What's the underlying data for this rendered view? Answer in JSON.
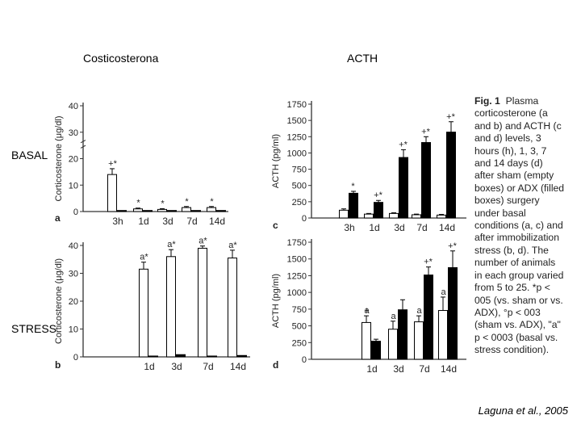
{
  "columns": {
    "left": "Costicosterona",
    "right": "ACTH"
  },
  "rows": {
    "top": "BASAL",
    "bottom": "STRESS"
  },
  "credit": "Laguna et al., 2005",
  "caption": {
    "fig": "Fig. 1",
    "text": "Plasma corticosterone (a and b) and ACTH (c and d) levels, 3 hours (h), 1, 3, 7 and 14 days (d) after sham (empty boxes) or ADX (filled boxes) surgery under basal conditions (a, c) and after immobilization stress (b, d). The number of animals in each group varied from 5 to 25. *p < 005 (vs. sham or vs. ADX), °p < 003 (sham vs. ADX), \"a\" p < 0003 (basal vs. stress condition)."
  },
  "chart_data": [
    {
      "panel": "a",
      "type": "bar",
      "ylabel": "Corticosterone (μg/dl)",
      "categories": [
        "3h",
        "1d",
        "3d",
        "7d",
        "14d"
      ],
      "yticks": [
        0,
        10,
        20,
        30,
        40
      ],
      "ylim": [
        0,
        40
      ],
      "series": [
        {
          "values": [
            14,
            1,
            0.8,
            1.5,
            1.5
          ],
          "errors": [
            2.2,
            0.3,
            0.3,
            0.4,
            0.4
          ],
          "fill": "white"
        },
        {
          "values": [
            0.4,
            0.4,
            0.4,
            0.4,
            0.4
          ],
          "errors": [
            0,
            0,
            0,
            0,
            0
          ],
          "fill": "black"
        }
      ],
      "annotations": [
        {
          "category": "3h",
          "text": "+*"
        },
        {
          "category": "1d",
          "text": "*"
        },
        {
          "category": "3d",
          "text": "*"
        },
        {
          "category": "7d",
          "text": "*"
        },
        {
          "category": "14d",
          "text": "*"
        }
      ]
    },
    {
      "panel": "b",
      "type": "bar",
      "ylabel": "Corticosterone (μg/dl)",
      "categories": [
        "1d",
        "3d",
        "7d",
        "14d"
      ],
      "yticks": [
        0,
        10,
        20,
        30,
        40
      ],
      "ylim": [
        0,
        40
      ],
      "series": [
        {
          "values": [
            31.5,
            36,
            39,
            35.5
          ],
          "errors": [
            2.5,
            2.5,
            0.8,
            2.8
          ],
          "fill": "white"
        },
        {
          "values": [
            0.3,
            0.8,
            0.3,
            0.5
          ],
          "errors": [
            0,
            0,
            0,
            0
          ],
          "fill": "black"
        }
      ],
      "annotations": [
        {
          "category": "1d",
          "text": "a*"
        },
        {
          "category": "3d",
          "text": "a*"
        },
        {
          "category": "7d",
          "text": "a*"
        },
        {
          "category": "14d",
          "text": "a*"
        }
      ]
    },
    {
      "panel": "c",
      "type": "bar",
      "ylabel": "ACTH (pg/ml)",
      "categories": [
        "3h",
        "1d",
        "3d",
        "7d",
        "14d"
      ],
      "yticks": [
        0,
        250,
        500,
        750,
        1000,
        1250,
        1500,
        1750
      ],
      "ylim": [
        0,
        1750
      ],
      "series": [
        {
          "values": [
            120,
            60,
            70,
            50,
            45
          ],
          "errors": [
            20,
            10,
            10,
            10,
            10
          ],
          "fill": "white"
        },
        {
          "values": [
            380,
            240,
            930,
            1160,
            1320
          ],
          "errors": [
            30,
            30,
            120,
            90,
            160
          ],
          "fill": "black"
        }
      ],
      "annotations": [
        {
          "category": "3h",
          "text": "*"
        },
        {
          "category": "1d",
          "text": "+*"
        },
        {
          "category": "3d",
          "text": "+*"
        },
        {
          "category": "7d",
          "text": "+*"
        },
        {
          "category": "14d",
          "text": "+*"
        }
      ]
    },
    {
      "panel": "d",
      "type": "bar",
      "ylabel": "ACTH (pg/ml)",
      "categories": [
        "1d",
        "3d",
        "7d",
        "14d"
      ],
      "yticks": [
        0,
        250,
        500,
        750,
        1000,
        1250,
        1500,
        1750
      ],
      "ylim": [
        0,
        1750
      ],
      "series": [
        {
          "values": [
            550,
            450,
            560,
            730
          ],
          "errors": [
            100,
            120,
            90,
            200
          ],
          "fill": "white"
        },
        {
          "values": [
            270,
            740,
            1260,
            1370
          ],
          "errors": [
            30,
            150,
            120,
            250
          ],
          "fill": "black"
        }
      ],
      "annotations": [
        {
          "category": "1d",
          "text": "+"
        },
        {
          "category": "7d",
          "text": "+*"
        },
        {
          "category": "14d",
          "text": "+*"
        }
      ],
      "sham_annotations": [
        {
          "category": "1d",
          "text": "a"
        },
        {
          "category": "3d",
          "text": "a"
        },
        {
          "category": "7d",
          "text": "a"
        },
        {
          "category": "14d",
          "text": "a"
        }
      ]
    }
  ]
}
